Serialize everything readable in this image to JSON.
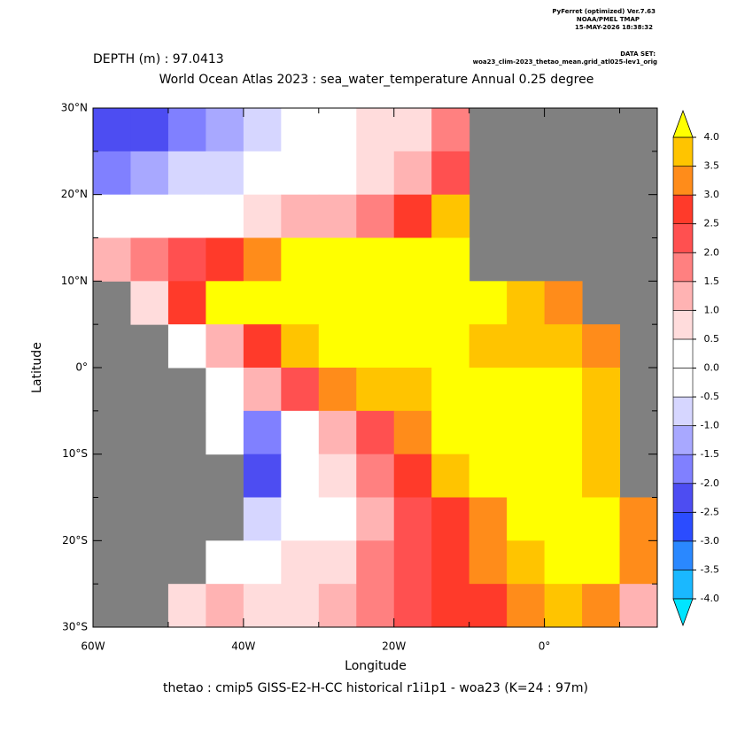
{
  "header": {
    "program": "PyFerret (optimized) Ver.7.63",
    "org": "NOAA/PMEL TMAP",
    "timestamp": "15-MAY-2026 18:38:32",
    "dataset_label": "DATA SET:",
    "dataset": "woa23_clim-2023_thetao_mean.grid_atl025-lev1_orig"
  },
  "chart_data": {
    "type": "heatmap",
    "subtitle": "DEPTH (m) : 97.0413",
    "title": "World Ocean Atlas 2023 : sea_water_temperature Annual  0.25 degree",
    "x_label": "Longitude",
    "y_label": "Latitude",
    "footer": "thetao : cmip5 GISS-E2-H-CC historical r1i1p1 - woa23  (K=24 : 97m)",
    "xlim": [
      -60,
      15
    ],
    "ylim": [
      -30,
      30
    ],
    "xticks": [
      {
        "value": -60,
        "label": "60W"
      },
      {
        "value": -40,
        "label": "40W"
      },
      {
        "value": -20,
        "label": "20W"
      },
      {
        "value": 0,
        "label": "0°"
      }
    ],
    "xminor_ticks": [
      -50,
      -30,
      -10,
      10
    ],
    "yticks": [
      {
        "value": 30,
        "label": "30°N"
      },
      {
        "value": 20,
        "label": "20°N"
      },
      {
        "value": 10,
        "label": "10°N"
      },
      {
        "value": 0,
        "label": "0°"
      },
      {
        "value": -10,
        "label": "10°S"
      },
      {
        "value": -20,
        "label": "20°S"
      },
      {
        "value": -30,
        "label": "30°S"
      }
    ],
    "yminor_ticks": [
      25,
      15,
      5,
      -5,
      -15,
      -25
    ],
    "land_color": "#808080",
    "x_edges": [
      -60,
      -55,
      -50,
      -45,
      -40,
      -35,
      -30,
      -25,
      -20,
      -15,
      -10,
      -5,
      0,
      5,
      10,
      15
    ],
    "y_edges": [
      30,
      25,
      20,
      15,
      10,
      5,
      0,
      -5,
      -10,
      -15,
      -20,
      -25,
      -30
    ],
    "values": [
      [
        -2.5,
        -2.5,
        -2,
        -1.5,
        -1,
        -0.5,
        0.3,
        0.5,
        0.8,
        1.5,
        null,
        null,
        null,
        null,
        null
      ],
      [
        -2,
        -1.5,
        -1,
        -1,
        -0.5,
        -0.3,
        0.3,
        0.8,
        1,
        2,
        null,
        null,
        null,
        null,
        null
      ],
      [
        -0.5,
        -0.3,
        0,
        0.3,
        0.6,
        1,
        1.3,
        1.8,
        2.5,
        3.5,
        null,
        null,
        null,
        null,
        null
      ],
      [
        1,
        1.5,
        2,
        2.5,
        3,
        4,
        4,
        4,
        4,
        4,
        null,
        null,
        null,
        null,
        null
      ],
      [
        null,
        0.5,
        2.5,
        4,
        4,
        4,
        4,
        4,
        4,
        4,
        4,
        3.5,
        3,
        null,
        null
      ],
      [
        null,
        null,
        0,
        1,
        2.5,
        3.5,
        4,
        4,
        4,
        4,
        3.5,
        3.5,
        3.5,
        3,
        null
      ],
      [
        null,
        null,
        null,
        0.3,
        1,
        2,
        3,
        3.5,
        3.5,
        4,
        4,
        4,
        4,
        3.5,
        null
      ],
      [
        null,
        null,
        null,
        -0.5,
        -2,
        -0.5,
        1,
        2,
        3,
        4,
        4,
        4,
        4,
        3.5,
        null
      ],
      [
        null,
        null,
        null,
        null,
        -2.5,
        0,
        0.5,
        1.5,
        2.5,
        3.5,
        4,
        4,
        4,
        3.5,
        null
      ],
      [
        null,
        null,
        null,
        null,
        -1,
        -0.5,
        0,
        1,
        2,
        2.5,
        3,
        4,
        4,
        4,
        3
      ],
      [
        null,
        null,
        null,
        -0.2,
        0,
        0.5,
        0.8,
        1.5,
        2,
        2.5,
        3,
        3.5,
        4,
        4,
        3
      ],
      [
        null,
        null,
        0.8,
        1,
        0.5,
        0.5,
        1,
        1.5,
        2,
        2.5,
        2.5,
        3,
        3.5,
        3,
        1
      ]
    ],
    "levels": [
      {
        "value": -4,
        "label": "-4.0"
      },
      -3.5,
      {
        "value": -3,
        "label": "-3.0"
      },
      -2.5,
      {
        "value": -2,
        "label": "-2.0"
      },
      -1.5,
      {
        "value": -1,
        "label": "-1.0"
      },
      -0.5,
      {
        "value": 0,
        "label": "0.0"
      },
      0.5,
      {
        "value": 1,
        "label": "1.0"
      },
      1.5,
      {
        "value": 2,
        "label": "2.0"
      },
      2.5,
      {
        "value": 3,
        "label": "3.0"
      },
      3.5,
      {
        "value": 4,
        "label": "4.0"
      }
    ],
    "colors": [
      "#00e5ff",
      "#1ab8ff",
      "#2a88ff",
      "#2b4cff",
      "#4d4df2",
      "#8080ff",
      "#a8a8ff",
      "#d6d6ff",
      "#ffffff",
      "#ffffff",
      "#ffdcdc",
      "#ffb3b3",
      "#ff8080",
      "#ff5050",
      "#ff3a2a",
      "#ff8c1a",
      "#ffc400",
      "#ffff00"
    ]
  }
}
